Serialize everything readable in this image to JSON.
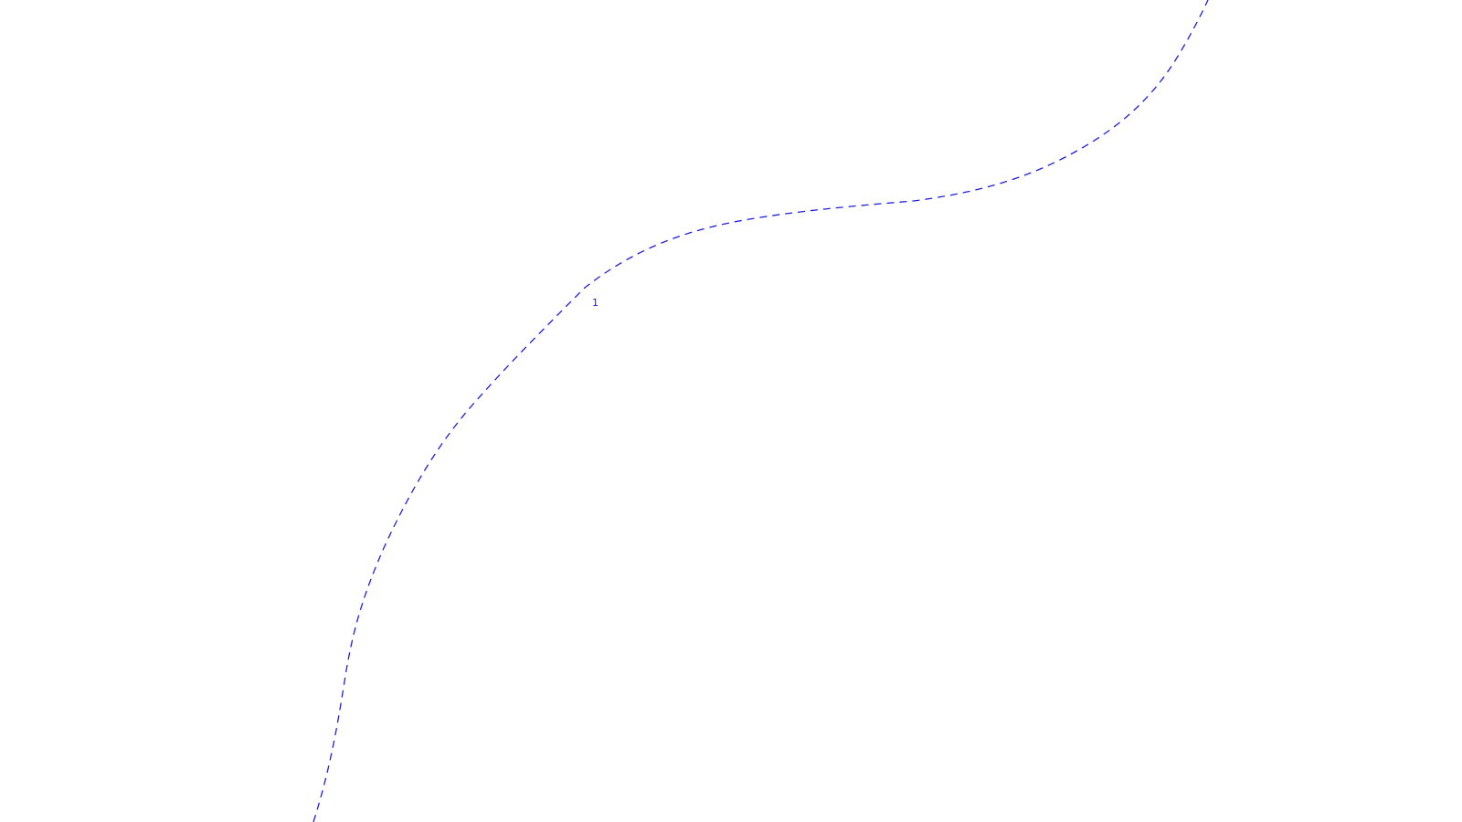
{
  "route": {
    "label": "1",
    "color": "#1f1fe0",
    "line_style": "dashed"
  }
}
